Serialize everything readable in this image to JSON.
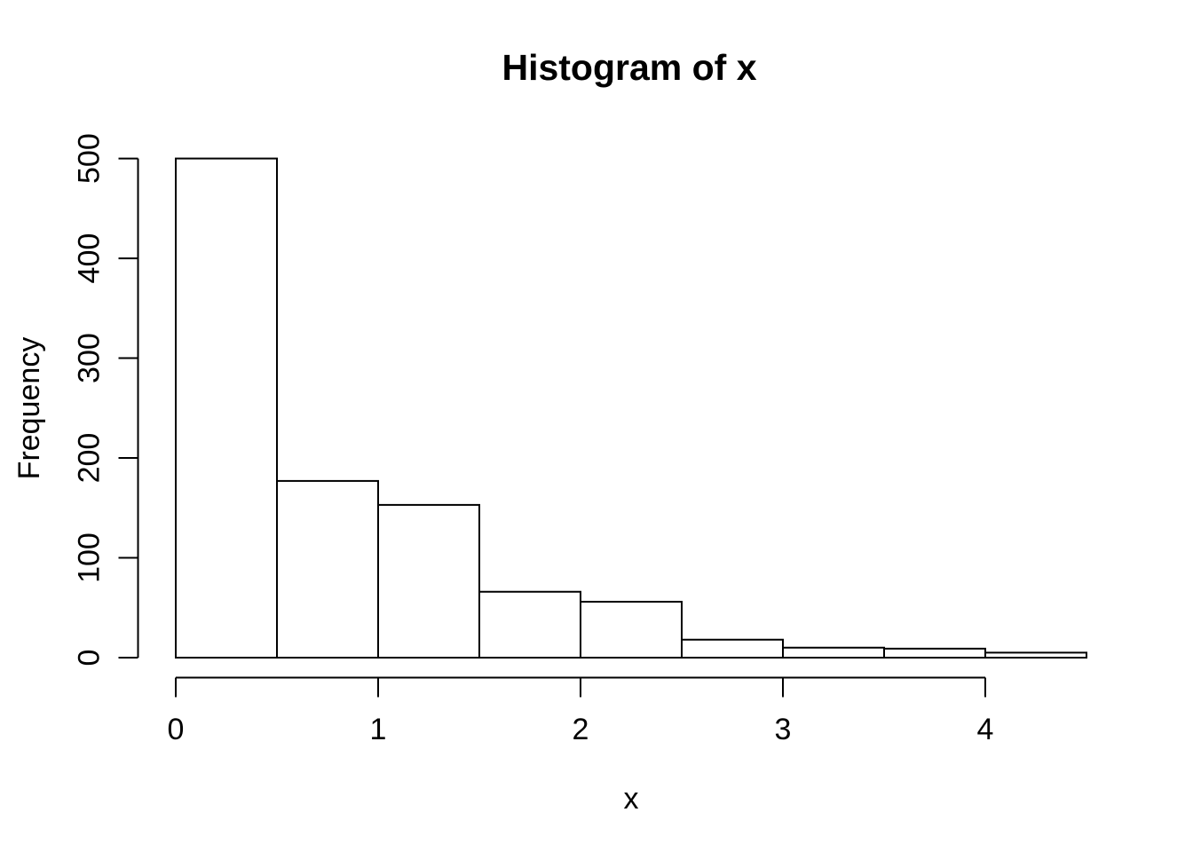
{
  "chart_data": {
    "type": "bar",
    "subtype": "histogram",
    "title": "Histogram of x",
    "xlabel": "x",
    "ylabel": "Frequency",
    "bin_width": 0.5,
    "bin_edges": [
      0,
      0.5,
      1,
      1.5,
      2,
      2.5,
      3,
      3.5,
      4,
      4.5
    ],
    "values": [
      500,
      177,
      153,
      66,
      56,
      18,
      10,
      9,
      5
    ],
    "x_ticks": [
      0,
      1,
      2,
      3,
      4
    ],
    "y_ticks": [
      0,
      100,
      200,
      300,
      400,
      500
    ],
    "xlim": [
      0,
      4.5
    ],
    "ylim": [
      0,
      500
    ],
    "grid": false,
    "legend": null,
    "bar_fill": "#ffffff",
    "bar_stroke": "#000000",
    "axis_color": "#000000",
    "text_color": "#000000",
    "background": "#ffffff"
  }
}
